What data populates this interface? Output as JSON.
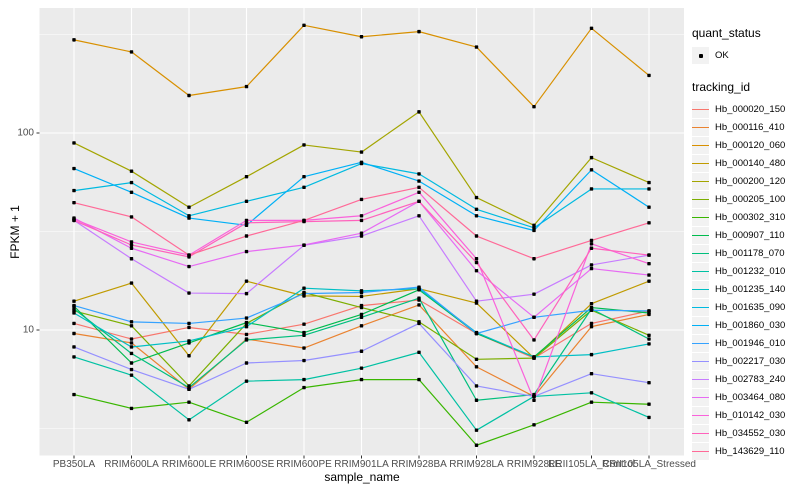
{
  "figure": {
    "background": "#FFFFFF",
    "panel_background": "#EBEBEB",
    "grid_color": "#FFFFFF",
    "tick_mark_color": "#333333",
    "tick_label_color": "#4D4D4D"
  },
  "chart_data": {
    "type": "line",
    "title": "",
    "xlabel": "sample_name",
    "ylabel": "FPKM + 1",
    "y_scale": "log10",
    "y_ticks": [
      100,
      10
    ],
    "y_minor_ticks": [
      316.2,
      31.62,
      3.162
    ],
    "ylim": [
      2.3,
      420
    ],
    "grid": "on",
    "marker": {
      "shape": "point",
      "color": "#000000",
      "status_label": "OK"
    },
    "x_categories": [
      "PB350LA",
      "RRIM600LA",
      "RRIM600LE",
      "RRIM600SE",
      "RRIM600PE",
      "RRIM901LA",
      "RRIM928BA",
      "RRIM928LA",
      "RRIM928LE",
      "RRII105LA_Control",
      "RRII105LA_Stressed"
    ],
    "series": [
      {
        "name": "Hb_000020_150",
        "color": "#F8766D",
        "values": [
          10.8,
          9.0,
          10.3,
          9.5,
          10.7,
          13.3,
          14.2,
          9.6,
          7.2,
          10.8,
          12.5
        ]
      },
      {
        "name": "Hb_000116_410",
        "color": "#EA8331",
        "values": [
          9.6,
          8.6,
          5.0,
          9.0,
          8.1,
          10.5,
          13.4,
          6.5,
          4.6,
          10.4,
          12.0
        ]
      },
      {
        "name": "Hb_000120_060",
        "color": "#D89000",
        "values": [
          297,
          258,
          155,
          172,
          352,
          308,
          327,
          273,
          136,
          340,
          196
        ]
      },
      {
        "name": "Hb_000140_480",
        "color": "#C09B00",
        "values": [
          14.0,
          17.3,
          7.4,
          17.7,
          14.9,
          14.8,
          16.2,
          13.7,
          7.2,
          13.6,
          17.7
        ]
      },
      {
        "name": "Hb_000200_120",
        "color": "#A3A500",
        "values": [
          89,
          64,
          42,
          60,
          87,
          80,
          128,
          47,
          34,
          75,
          56
        ]
      },
      {
        "name": "Hb_000205_100",
        "color": "#7CAE00",
        "values": [
          12.5,
          10.5,
          5.2,
          10.8,
          15.5,
          13.0,
          11.0,
          7.1,
          7.2,
          12.6,
          9.4
        ]
      },
      {
        "name": "Hb_000302_310",
        "color": "#39B600",
        "values": [
          4.7,
          4.0,
          4.3,
          3.4,
          5.1,
          5.6,
          5.6,
          2.6,
          3.3,
          4.3,
          4.2
        ]
      },
      {
        "name": "Hb_000907_110",
        "color": "#00BB4E",
        "values": [
          13.2,
          6.8,
          8.6,
          10.9,
          9.7,
          12.0,
          16.0,
          9.6,
          7.3,
          13.0,
          12.2
        ]
      },
      {
        "name": "Hb_001178_070",
        "color": "#00BF7D",
        "values": [
          12.8,
          7.6,
          5.1,
          8.9,
          9.4,
          11.6,
          14.5,
          4.4,
          4.7,
          12.8,
          9.0
        ]
      },
      {
        "name": "Hb_001232_010",
        "color": "#00C1A3",
        "values": [
          7.3,
          5.9,
          3.5,
          5.5,
          5.6,
          6.4,
          7.7,
          3.1,
          4.6,
          4.8,
          3.6
        ]
      },
      {
        "name": "Hb_001235_140",
        "color": "#00BFC4",
        "values": [
          12.2,
          8.2,
          8.8,
          10.4,
          16.3,
          15.8,
          16.2,
          9.7,
          7.3,
          7.5,
          8.5
        ]
      },
      {
        "name": "Hb_001635_090",
        "color": "#00BAE0",
        "values": [
          51,
          56,
          38,
          45,
          53,
          70,
          62,
          41,
          33,
          52,
          52
        ]
      },
      {
        "name": "Hb_001860_030",
        "color": "#00B0F6",
        "values": [
          66,
          50,
          37,
          34,
          60,
          71,
          57,
          38,
          32,
          65,
          42
        ]
      },
      {
        "name": "Hb_001946_010",
        "color": "#35A2FF",
        "values": [
          13.3,
          11.0,
          10.8,
          11.5,
          15.3,
          15.5,
          16.5,
          9.6,
          11.6,
          12.6,
          12.5
        ]
      },
      {
        "name": "Hb_002217_030",
        "color": "#9590FF",
        "values": [
          8.2,
          6.3,
          5.0,
          6.8,
          7.0,
          7.8,
          10.8,
          5.2,
          4.6,
          6.0,
          5.4
        ]
      },
      {
        "name": "Hb_002783_240",
        "color": "#C77CFF",
        "values": [
          36,
          23,
          15.4,
          15.3,
          26.9,
          30,
          38,
          14.0,
          15.2,
          21.4,
          24
        ]
      },
      {
        "name": "Hb_003464_080",
        "color": "#E76BF3",
        "values": [
          37,
          26,
          21,
          25,
          27,
          31,
          45,
          20,
          11.6,
          20.5,
          19
        ]
      },
      {
        "name": "Hb_010142_030",
        "color": "#FA62DB",
        "values": [
          36.5,
          28,
          24,
          36,
          36,
          38,
          50,
          23,
          4.4,
          27.4,
          21.7
        ]
      },
      {
        "name": "Hb_034552_030",
        "color": "#FF62BC",
        "values": [
          36,
          27,
          23.5,
          35,
          35.5,
          36,
          45,
          22,
          8.9,
          26,
          24
        ]
      },
      {
        "name": "Hb_143629_110",
        "color": "#FF6A98",
        "values": [
          44.3,
          37.5,
          24,
          30,
          36,
          46,
          53,
          30,
          23,
          28.5,
          35
        ]
      }
    ],
    "legend": {
      "position": "right",
      "quant_status_title": "quant_status",
      "quant_status_items": [
        "OK"
      ],
      "tracking_title": "tracking_id"
    }
  }
}
